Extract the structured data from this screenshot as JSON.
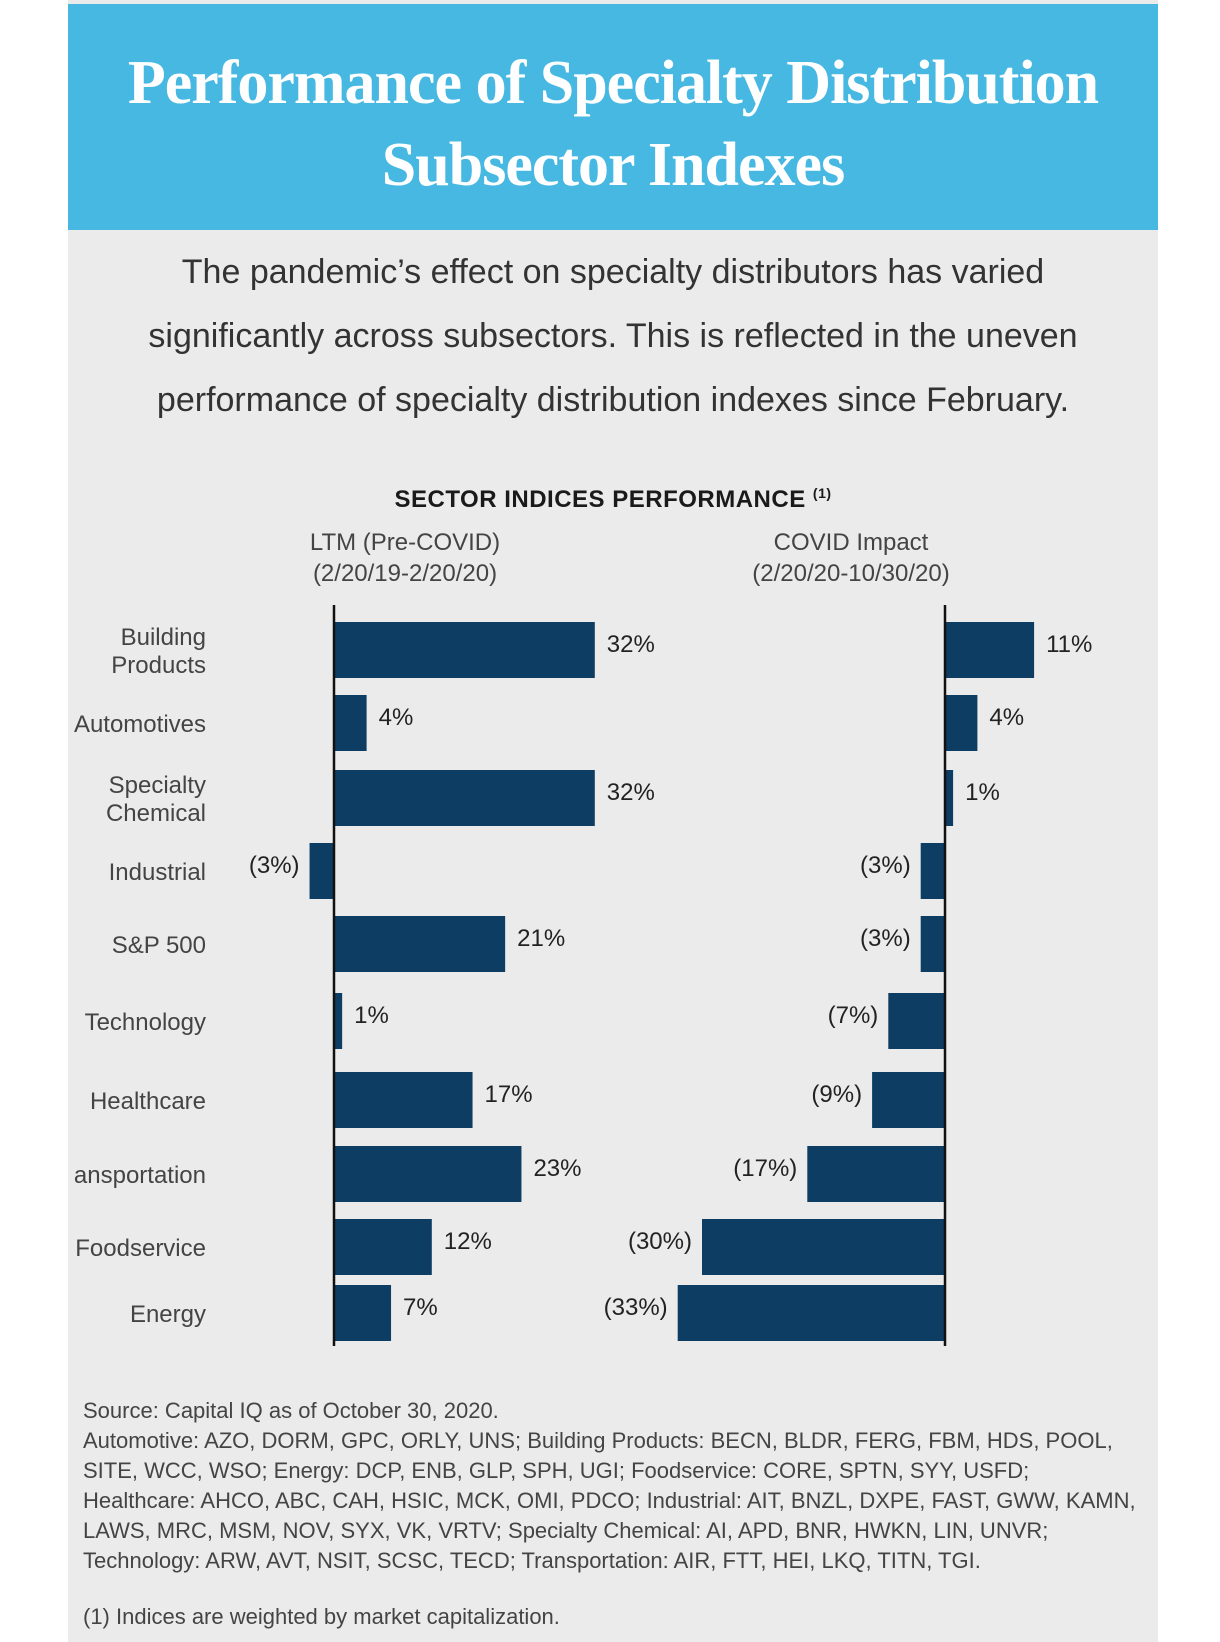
{
  "header": {
    "title_line1": "Performance of Specialty Distribution",
    "title_line2": "Subsector Indexes"
  },
  "intro": {
    "line1": "The pandemic’s effect on specialty distributors has varied",
    "line2": "significantly across subsectors. This is reflected in the uneven",
    "line3": "performance of specialty distribution indexes since February."
  },
  "chart_data": {
    "type": "bar",
    "orientation": "horizontal",
    "title": "SECTOR INDICES PERFORMANCE",
    "title_note": "(1)",
    "categories": [
      "Building Products",
      "Automotives",
      "Specialty Chemical",
      "Industrial",
      "S&P 500",
      "Technology",
      "Healthcare",
      "Transportation",
      "Foodservice",
      "Energy"
    ],
    "category_display": [
      [
        "Building",
        "Products"
      ],
      [
        "Automotives"
      ],
      [
        "Specialty",
        "Chemical"
      ],
      [
        "Industrial"
      ],
      [
        "S&P 500"
      ],
      [
        "Technology"
      ],
      [
        "Healthcare"
      ],
      [
        "ansportation"
      ],
      [
        "Foodservice"
      ],
      [
        "Energy"
      ]
    ],
    "series": [
      {
        "name": "LTM (Pre-COVID)",
        "period": "(2/20/19-2/20/20)",
        "values": [
          32,
          4,
          32,
          -3,
          21,
          1,
          17,
          23,
          12,
          7
        ],
        "labels": [
          "32%",
          "4%",
          "32%",
          "(3%)",
          "21%",
          "1%",
          "17%",
          "23%",
          "12%",
          "7%"
        ]
      },
      {
        "name": "COVID Impact",
        "period": "(2/20/20-10/30/20)",
        "values": [
          11,
          4,
          1,
          -3,
          -3,
          -7,
          -9,
          -17,
          -30,
          -33
        ],
        "labels": [
          "11%",
          "4%",
          "1%",
          "(3%)",
          "(3%)",
          "(7%)",
          "(9%)",
          "(17%)",
          "(30%)",
          "(33%)"
        ]
      }
    ],
    "bar_color": "#0d3d62",
    "unit": "%"
  },
  "sources": {
    "line1": "Source: Capital IQ as of October 30, 2020.",
    "line2": "Automotive: AZO, DORM, GPC, ORLY, UNS; Building Products: BECN, BLDR, FERG, FBM, HDS, POOL, SITE, WCC, WSO; Energy: DCP, ENB, GLP, SPH, UGI; Foodservice: CORE, SPTN, SYY, USFD; Healthcare: AHCO, ABC, CAH, HSIC, MCK, OMI, PDCO; Industrial: AIT, BNZL, DXPE, FAST, GWW, KAMN, LAWS, MRC, MSM, NOV, SYX, VK, VRTV; Specialty Chemical: AI, APD, BNR, HWKN, LIN, UNVR; Technology: ARW, AVT, NSIT, SCSC, TECD; Transportation: AIR, FTT, HEI, LKQ, TITN, TGI."
  },
  "footnote": "(1)  Indices are weighted by market capitalization."
}
